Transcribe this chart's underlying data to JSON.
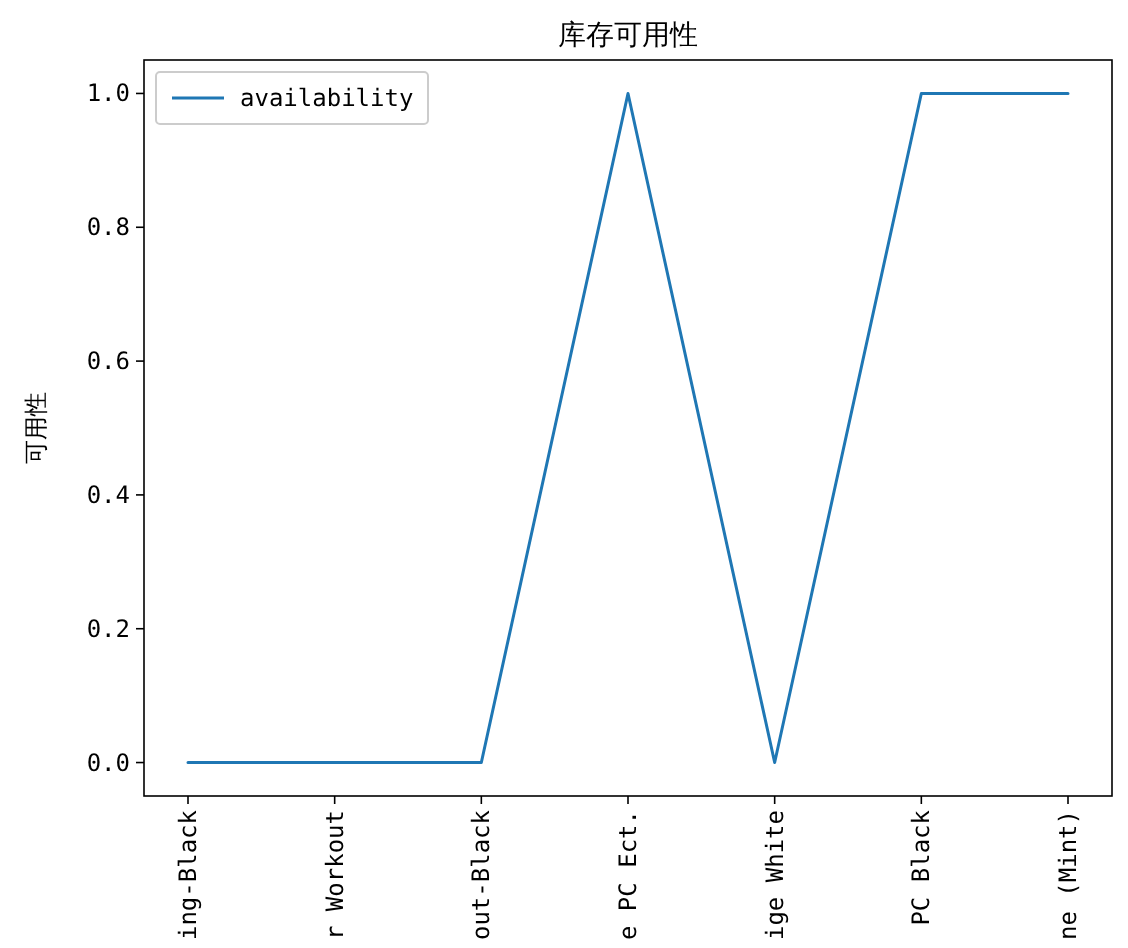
{
  "chart_data": {
    "type": "line",
    "title": "库存可用性",
    "ylabel": "可用性",
    "categories": [
      "ing-Black",
      "r Workout",
      "out-Black",
      "e PC Ect.",
      "ige White",
      "PC Black",
      "ne (Mint)"
    ],
    "series": [
      {
        "name": "availability",
        "color": "#1f77b4",
        "values": [
          0,
          0,
          0,
          1,
          0,
          1,
          1
        ]
      }
    ],
    "ylim": [
      -0.05,
      1.05
    ],
    "yticks": [
      {
        "value": 0,
        "label": "0.0"
      },
      {
        "value": 0.2,
        "label": "0.2"
      },
      {
        "value": 0.4,
        "label": "0.4"
      },
      {
        "value": 0.6,
        "label": "0.6"
      },
      {
        "value": 0.8,
        "label": "0.8"
      },
      {
        "value": 1,
        "label": "1.0"
      }
    ],
    "legend": "top left"
  }
}
